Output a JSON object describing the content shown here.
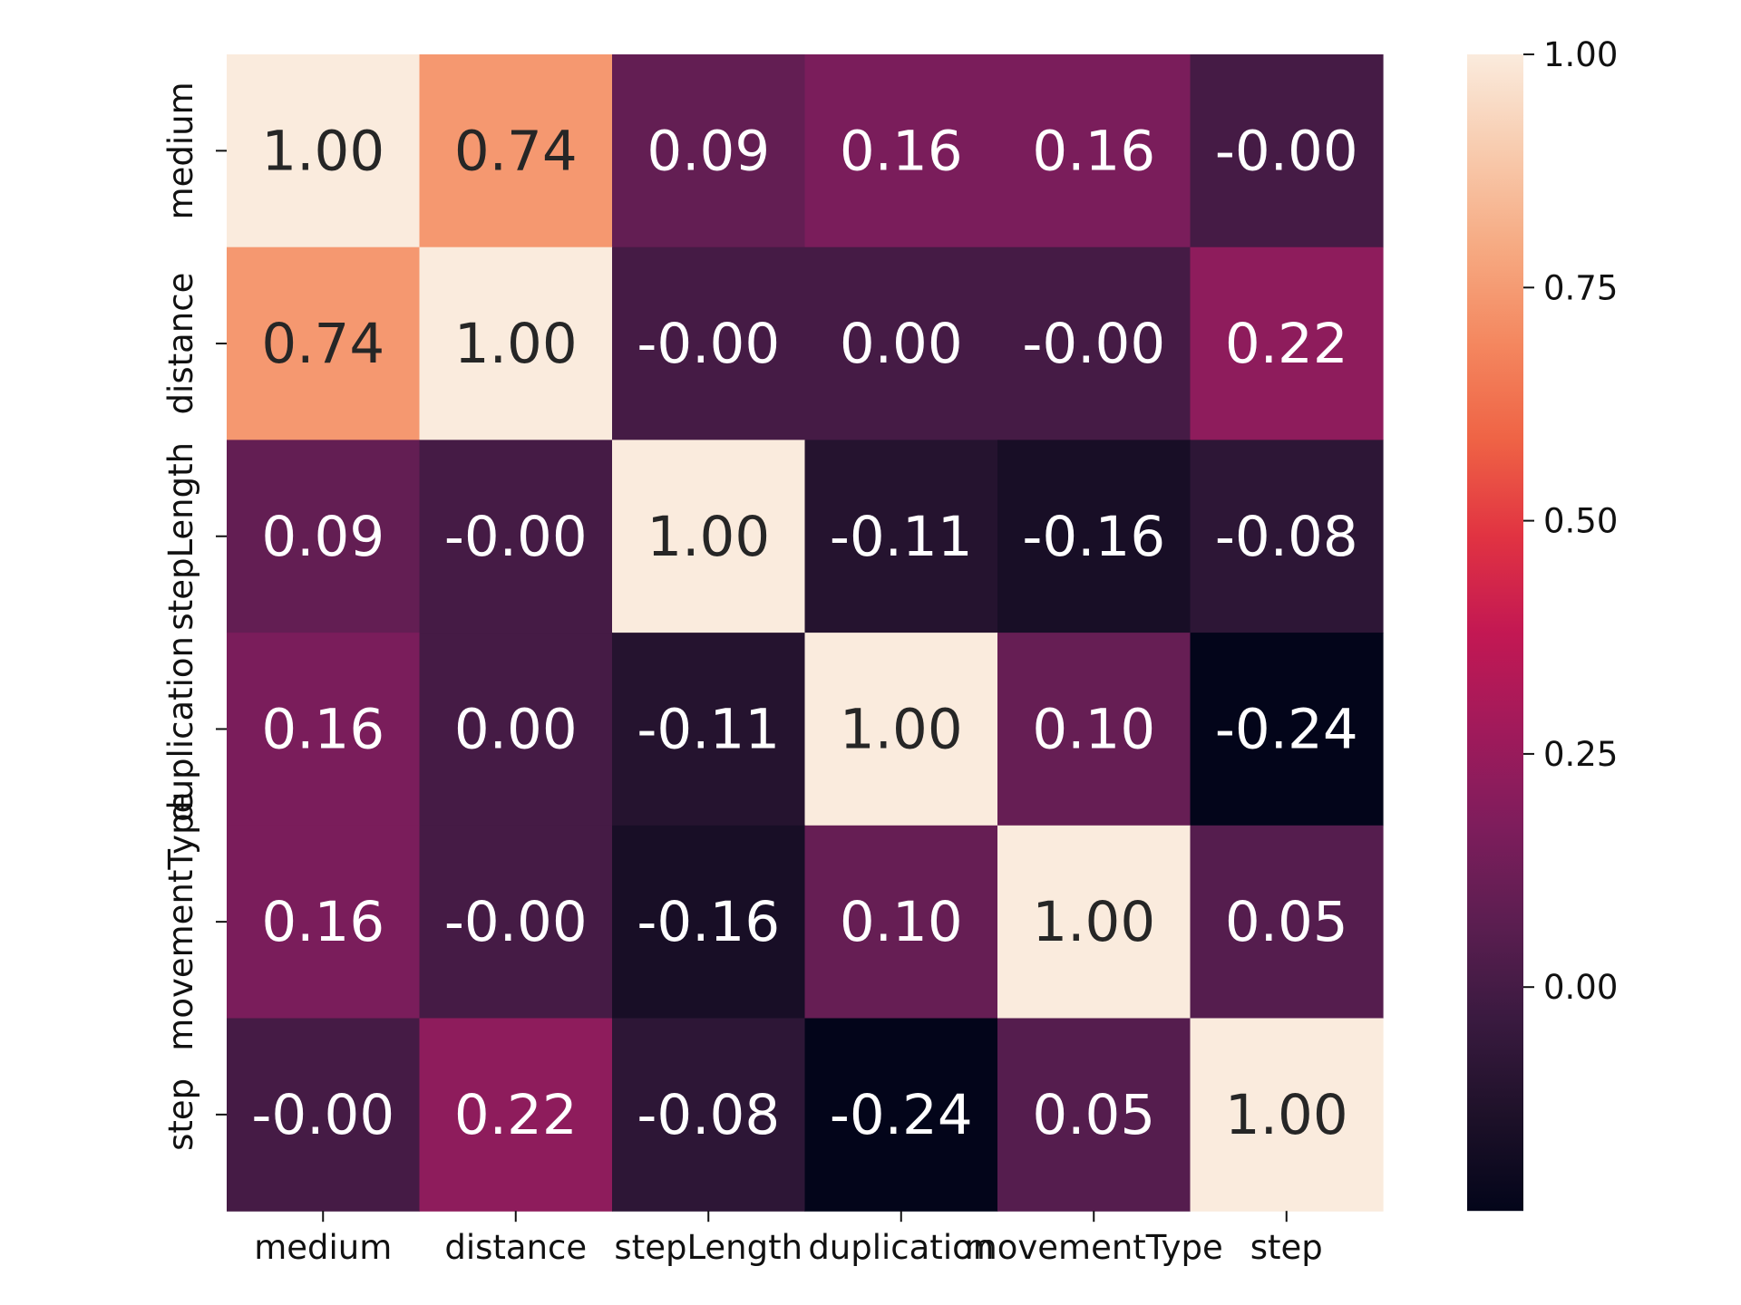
{
  "chart_data": {
    "type": "heatmap",
    "title": "",
    "xlabel": "",
    "ylabel": "",
    "x_categories": [
      "medium",
      "distance",
      "stepLength",
      "duplication",
      "movementType",
      "step"
    ],
    "y_categories": [
      "medium",
      "distance",
      "stepLength",
      "duplication",
      "movementType",
      "step"
    ],
    "values": [
      [
        1.0,
        0.74,
        0.09,
        0.16,
        0.16,
        -0.0
      ],
      [
        0.74,
        1.0,
        -0.0,
        0.0,
        -0.0,
        0.22
      ],
      [
        0.09,
        -0.0,
        1.0,
        -0.11,
        -0.16,
        -0.08
      ],
      [
        0.16,
        0.0,
        -0.11,
        1.0,
        0.1,
        -0.24
      ],
      [
        0.16,
        -0.0,
        -0.16,
        0.1,
        1.0,
        0.05
      ],
      [
        -0.0,
        0.22,
        -0.08,
        -0.24,
        0.05,
        1.0
      ]
    ],
    "cell_labels": [
      [
        "1.00",
        "0.74",
        "0.09",
        "0.16",
        "0.16",
        "-0.00"
      ],
      [
        "0.74",
        "1.00",
        "-0.00",
        "0.00",
        "-0.00",
        "0.22"
      ],
      [
        "0.09",
        "-0.00",
        "1.00",
        "-0.11",
        "-0.16",
        "-0.08"
      ],
      [
        "0.16",
        "0.00",
        "-0.11",
        "1.00",
        "0.10",
        "-0.24"
      ],
      [
        "0.16",
        "-0.00",
        "-0.16",
        "0.10",
        "1.00",
        "0.05"
      ],
      [
        "-0.00",
        "0.22",
        "-0.08",
        "-0.24",
        "0.05",
        "1.00"
      ]
    ],
    "colorbar": {
      "colormap": "rocket",
      "vmin": -0.24,
      "vmax": 1.0,
      "ticks": [
        0.0,
        0.25,
        0.5,
        0.75,
        1.0
      ],
      "tick_labels": [
        "0.00",
        "0.25",
        "0.50",
        "0.75",
        "1.00"
      ]
    },
    "colormap_stops": [
      "#03051a",
      "#1e1129",
      "#3a1a40",
      "#5c1e51",
      "#7e1d5c",
      "#a11a5b",
      "#c31853",
      "#e13342",
      "#ef6345",
      "#f4875f",
      "#f6aa82",
      "#f8cbae",
      "#faebdd"
    ],
    "text_color_dark": "#262626",
    "text_color_light": "#ffffff",
    "grid": false
  }
}
